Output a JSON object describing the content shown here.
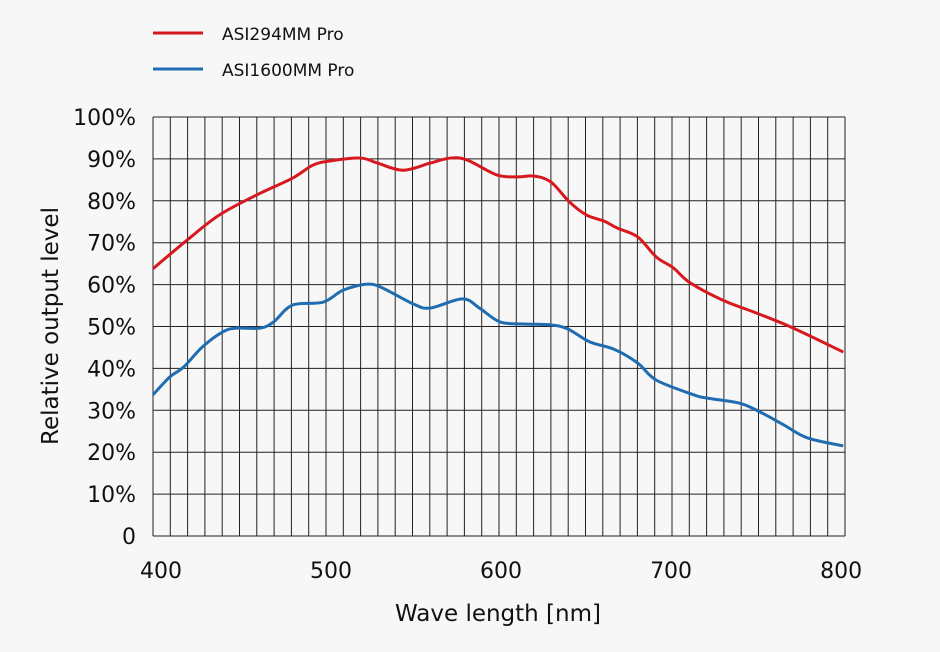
{
  "chart_data": {
    "type": "line",
    "title": "",
    "xlabel": "Wave length [nm]",
    "ylabel": "Relative output level",
    "xlim": [
      400,
      807
    ],
    "ylim": [
      0,
      100
    ],
    "x_ticks": [
      400,
      500,
      600,
      700,
      800
    ],
    "x_tick_labels": [
      "400",
      "500",
      "600",
      "700",
      "800"
    ],
    "y_ticks": [
      0,
      10,
      20,
      30,
      40,
      50,
      60,
      70,
      80,
      90,
      100
    ],
    "y_tick_labels": [
      "0",
      "10%",
      "20%",
      "30%",
      "40%",
      "50%",
      "60%",
      "70%",
      "80%",
      "90%",
      "100%"
    ],
    "grid": true,
    "vertical_grid_divisions": 40,
    "legend_position": "top-left",
    "series": [
      {
        "name": "ASI294MM Pro",
        "color": "#d7191f",
        "points": [
          [
            400,
            63.8
          ],
          [
            420,
            70.6
          ],
          [
            439,
            76.6
          ],
          [
            461,
            81.4
          ],
          [
            482,
            85.4
          ],
          [
            494,
            88.5
          ],
          [
            504,
            89.5
          ],
          [
            522,
            90.2
          ],
          [
            532,
            89
          ],
          [
            547,
            87.3
          ],
          [
            563,
            89
          ],
          [
            575,
            90.2
          ],
          [
            585,
            89.7
          ],
          [
            602,
            86.2
          ],
          [
            614,
            85.7
          ],
          [
            624,
            85.9
          ],
          [
            634,
            84.5
          ],
          [
            645,
            79.7
          ],
          [
            655,
            76.6
          ],
          [
            665,
            75.2
          ],
          [
            673,
            73.5
          ],
          [
            685,
            71.4
          ],
          [
            696,
            66.6
          ],
          [
            706,
            64
          ],
          [
            716,
            60.4
          ],
          [
            735,
            56.3
          ],
          [
            755,
            53.2
          ],
          [
            775,
            49.9
          ],
          [
            806,
            43.9
          ]
        ]
      },
      {
        "name": "ASI1600MM Pro",
        "color": "#1f6db0",
        "points": [
          [
            400,
            33.7
          ],
          [
            410,
            38
          ],
          [
            418,
            40.3
          ],
          [
            429,
            45.1
          ],
          [
            441,
            48.7
          ],
          [
            449,
            49.6
          ],
          [
            463,
            49.6
          ],
          [
            471,
            51.1
          ],
          [
            482,
            55.1
          ],
          [
            500,
            55.8
          ],
          [
            512,
            58.7
          ],
          [
            526,
            60.1
          ],
          [
            535,
            59.2
          ],
          [
            553,
            55.4
          ],
          [
            563,
            54.4
          ],
          [
            582,
            56.6
          ],
          [
            592,
            54.4
          ],
          [
            604,
            51.1
          ],
          [
            618,
            50.6
          ],
          [
            634,
            50.4
          ],
          [
            644,
            49.4
          ],
          [
            657,
            46.3
          ],
          [
            671,
            44.6
          ],
          [
            685,
            41.3
          ],
          [
            696,
            37.2
          ],
          [
            718,
            33.7
          ],
          [
            726,
            32.9
          ],
          [
            745,
            31.7
          ],
          [
            757,
            29.6
          ],
          [
            771,
            26.5
          ],
          [
            785,
            23.4
          ],
          [
            806,
            21.5
          ]
        ]
      }
    ]
  }
}
